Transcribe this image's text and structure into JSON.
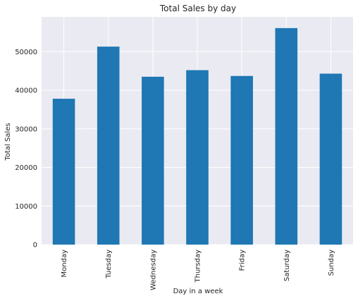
{
  "chart_data": {
    "type": "bar",
    "title": "Total Sales by day",
    "xlabel": "Day in a week",
    "ylabel": "Total Sales",
    "categories": [
      "Monday",
      "Tuesday",
      "Wednesday",
      "Thursday",
      "Friday",
      "Saturday",
      "Sunday"
    ],
    "values": [
      37800,
      51300,
      43500,
      45200,
      43700,
      56100,
      44300
    ],
    "ylim": [
      0,
      59000
    ],
    "yticks": [
      0,
      10000,
      20000,
      30000,
      40000,
      50000
    ],
    "grid": true,
    "legend": "none",
    "colors": {
      "bar": "#1f77b4",
      "plot_background": "#eaeaf2",
      "grid": "#ffffff",
      "text": "#262626"
    }
  }
}
